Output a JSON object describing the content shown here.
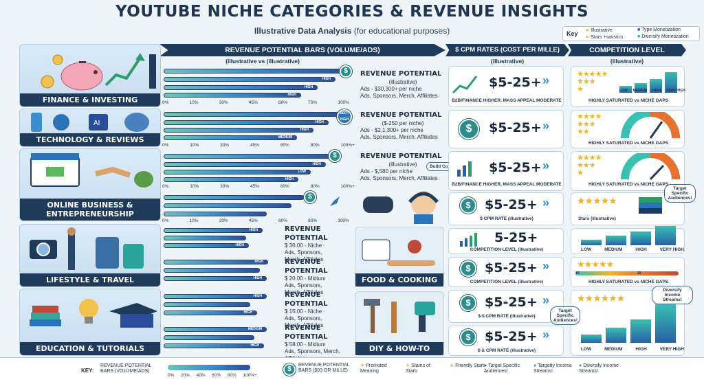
{
  "header": {
    "title": "YOUTUBE NICHE CATEGORIES & REVENUE INSIGHTS",
    "subtitle_bold": "Illustrative Data Analysis",
    "subtitle_rest": " (for educational purposes)"
  },
  "key": {
    "label": "Key",
    "items": [
      "Illustrative",
      "Type Monetization",
      "Stars +satistics",
      "Diversify Monetization"
    ]
  },
  "columns": {
    "revenue": {
      "title": "REVENUE POTENTIAL BARS (VOLUME/ADS)",
      "sub": "(illustrative vs (illustrative)"
    },
    "cpm": {
      "title": "$ CPM RATES (COST PER MILLE)",
      "sub": "(illustrative)"
    },
    "competition": {
      "title": "COMPETITION LEVEL",
      "sub": "(illustrative)"
    }
  },
  "categories": [
    {
      "label": "FINANCE & INVESTING"
    },
    {
      "label": "TECHNOLOGY & REVIEWS"
    },
    {
      "label": "ONLINE BUSINESS & ENTREPRENEURSHIP"
    },
    {
      "label": "LIFESTYLE & TRAVEL"
    },
    {
      "label": "EDUCATION & TUTORIALS"
    }
  ],
  "mid_categories": [
    {
      "label": "FOOD & COOKING"
    },
    {
      "label": "DIY & HOW-TO"
    }
  ],
  "tick_sets": {
    "a": [
      "0%",
      "10%",
      "30%",
      "45%",
      "60%",
      "70%",
      "100%"
    ],
    "b": [
      "0%",
      "10%",
      "30%",
      "45%",
      "60%",
      "80%",
      "100%+"
    ],
    "c": [
      "0%",
      "10%",
      "20%",
      "45%",
      "60%",
      "80%",
      "100%"
    ]
  },
  "bar_labels": {
    "high": "HIGH",
    "medium": "MEDIUM",
    "low": "LOW",
    "sert": "SERT HIGH"
  },
  "revenue_blocks": [
    {
      "h": "REVENUE POTENTIAL",
      "s": "(illustrative)",
      "l1": "Ads - $30,300+ per niche",
      "l2": "Ads, Sponsors, Merch, Affiliates"
    },
    {
      "h": "REVENUE POTENTIAL",
      "s": "($-250 per niche)",
      "l1": "Ads - $2,1,300+ per niche",
      "l2": "Ads, Sponsors, Merch, Affiliates"
    },
    {
      "h": "REVENUE POTENTIAL",
      "s": "(illustrative)",
      "l1": "Ads - $,580 per niche",
      "l2": "Ads, Sponsors, Merch, Affiliates"
    },
    {
      "h": "REVENUE POTENTIAL",
      "l1": "$ 30.00 - Niche",
      "l2": "Ads, Sponsors,",
      "l3": "Merch, Affiliates"
    },
    {
      "h": "REVENUE POTENTIAL",
      "l1": "$ 20.00 - Midium",
      "l2": "Ads, Sponsors,",
      "l3": "Merch, Affiliates"
    },
    {
      "h": "REVENUE POTENTIAL",
      "l1": "$ 15.00 - Niche",
      "l2": "Ads, Sponsors,",
      "l3": "Merch, Affiliates"
    },
    {
      "h": "REVENUE POTENTIAL",
      "l1": "$ 58.00 - Midium",
      "l2": "Ads, Sponsors, Merch,",
      "l3": "Affiliates"
    }
  ],
  "cpm": {
    "value": "$5-25+",
    "value2": "5-25+",
    "notes": [
      "B2B/FINANCE HIGHER, MASS APPEAL MODERATE",
      "$ CPM RATE (illustrative)",
      "COMPETITION LEVEL (illustrative)",
      "$-$ CPM RATE (illustrative)",
      "$ & CPM RATE (illustrative)"
    ],
    "bubble": "Build Community!"
  },
  "competition": {
    "saturated": "HIGHLY SATURATED vs NICHE GAPS",
    "stars_note": "Stars (illustrative)",
    "levels": [
      "LOW",
      "MEDIUM",
      "HIGH",
      "VERY HIGH"
    ],
    "gauge": [
      "LOW",
      "MEDIUM",
      "HIGH",
      "VERY HIGH"
    ],
    "bubble1": "Target Specific Audiences!",
    "bubble2": "Diversify Income Streams!",
    "bubble3": "Target Specific Audiences!",
    "scale": [
      "15",
      "25"
    ]
  },
  "footer": {
    "key": "KEY:",
    "bars": "REVENUE POTENTIAL BARS (VOLUME/ADS)",
    "ticks": [
      "0%",
      "20%",
      "40%",
      "60%",
      "80%",
      "100%+"
    ],
    "coin": "REVENUE POTENTIAL BARS ($03 OR MILLE)",
    "items": [
      "Promoted Meaning",
      "Stams of Stars",
      "Friendly Stars",
      "Target Specific Audiences!",
      "Targetty Income Streams!",
      "Diversify Income Streams!"
    ]
  }
}
